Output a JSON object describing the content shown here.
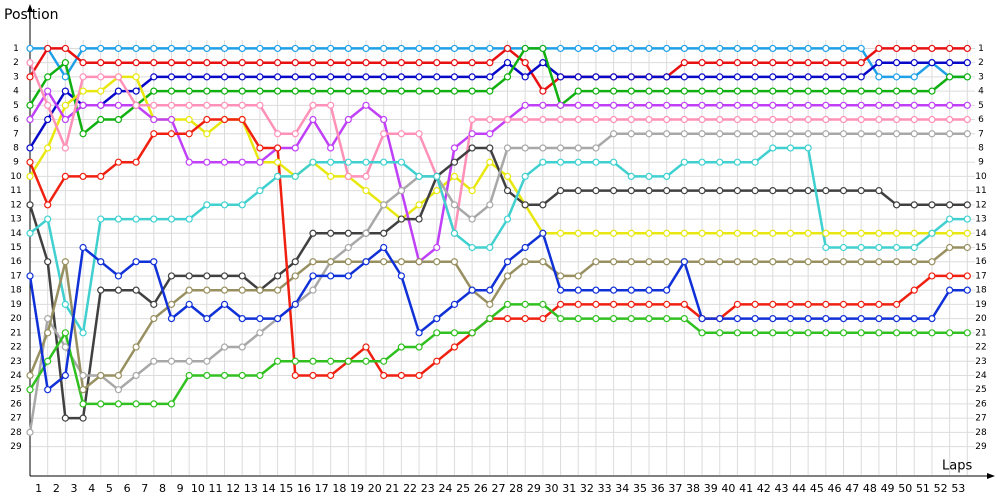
{
  "chart_data": {
    "type": "line",
    "ylabel": "Position",
    "xlabel": "Laps",
    "grid": true,
    "inverted_y": true,
    "x": [
      0,
      1,
      2,
      3,
      4,
      5,
      6,
      7,
      8,
      9,
      10,
      11,
      12,
      13,
      14,
      15,
      16,
      17,
      18,
      19,
      20,
      21,
      22,
      23,
      24,
      25,
      26,
      27,
      28,
      29,
      30,
      31,
      32,
      33,
      34,
      35,
      36,
      37,
      38,
      39,
      40,
      41,
      42,
      43,
      44,
      45,
      46,
      47,
      48,
      49,
      50,
      51,
      52,
      53
    ],
    "xlim": [
      0,
      54
    ],
    "xticks": [
      1,
      2,
      3,
      4,
      5,
      6,
      7,
      8,
      9,
      10,
      11,
      12,
      13,
      14,
      15,
      16,
      17,
      18,
      19,
      20,
      21,
      22,
      23,
      24,
      25,
      26,
      27,
      28,
      29,
      30,
      31,
      32,
      33,
      34,
      35,
      36,
      37,
      38,
      39,
      40,
      41,
      42,
      43,
      44,
      45,
      46,
      47,
      48,
      49,
      50,
      51,
      52,
      53
    ],
    "ylim": [
      31,
      -1
    ],
    "yticks": [
      1,
      2,
      3,
      4,
      5,
      6,
      7,
      8,
      9,
      10,
      11,
      12,
      13,
      14,
      15,
      16,
      17,
      18,
      19,
      20,
      21,
      22,
      23,
      24,
      25,
      26,
      27,
      28,
      29
    ],
    "series": [
      {
        "color": "#1fa0e8",
        "values": [
          1,
          1,
          3,
          1,
          1,
          1,
          1,
          1,
          1,
          1,
          1,
          1,
          1,
          1,
          1,
          1,
          1,
          1,
          1,
          1,
          1,
          1,
          1,
          1,
          1,
          1,
          1,
          1,
          1,
          1,
          1,
          1,
          1,
          1,
          1,
          1,
          1,
          1,
          1,
          1,
          1,
          1,
          1,
          1,
          1,
          1,
          1,
          1,
          3,
          3,
          3,
          2,
          3,
          3
        ]
      },
      {
        "color": "#e81010",
        "values": [
          3,
          1,
          1,
          2,
          2,
          2,
          2,
          2,
          2,
          2,
          2,
          2,
          2,
          2,
          2,
          2,
          2,
          2,
          2,
          2,
          2,
          2,
          2,
          2,
          2,
          2,
          2,
          1,
          2,
          4,
          3,
          3,
          3,
          3,
          3,
          3,
          3,
          2,
          2,
          2,
          2,
          2,
          2,
          2,
          2,
          2,
          2,
          2,
          1,
          1,
          1,
          1,
          1,
          1
        ]
      },
      {
        "color": "#0808c8",
        "values": [
          8,
          6,
          4,
          5,
          5,
          4,
          4,
          3,
          3,
          3,
          3,
          3,
          3,
          3,
          3,
          3,
          3,
          3,
          3,
          3,
          3,
          3,
          3,
          3,
          3,
          3,
          3,
          2,
          3,
          2,
          3,
          3,
          3,
          3,
          3,
          3,
          3,
          3,
          3,
          3,
          3,
          3,
          3,
          3,
          3,
          3,
          3,
          3,
          2,
          2,
          2,
          2,
          2,
          2
        ]
      },
      {
        "color": "#10b010",
        "values": [
          5,
          3,
          2,
          7,
          6,
          6,
          5,
          4,
          4,
          4,
          4,
          4,
          4,
          4,
          4,
          4,
          4,
          4,
          4,
          4,
          4,
          4,
          4,
          4,
          4,
          4,
          4,
          3,
          1,
          1,
          5,
          4,
          4,
          4,
          4,
          4,
          4,
          4,
          4,
          4,
          4,
          4,
          4,
          4,
          4,
          4,
          4,
          4,
          4,
          4,
          4,
          4,
          3,
          3
        ]
      },
      {
        "color": "#e8e810",
        "values": [
          10,
          8,
          5,
          4,
          4,
          3,
          3,
          6,
          6,
          6,
          7,
          6,
          6,
          9,
          9,
          10,
          9,
          10,
          10,
          11,
          12,
          13,
          12,
          11,
          10,
          11,
          9,
          10,
          12,
          14,
          14,
          14,
          14,
          14,
          14,
          14,
          14,
          14,
          14,
          14,
          14,
          14,
          14,
          14,
          14,
          14,
          14,
          14,
          14,
          14,
          14,
          14,
          14,
          14
        ]
      },
      {
        "color": "#c040f8",
        "values": [
          6,
          4,
          6,
          5,
          5,
          5,
          5,
          6,
          6,
          9,
          9,
          9,
          9,
          9,
          8,
          8,
          6,
          8,
          6,
          5,
          6,
          11,
          16,
          15,
          8,
          7,
          7,
          6,
          5,
          5,
          5,
          5,
          5,
          5,
          5,
          5,
          5,
          5,
          5,
          5,
          5,
          5,
          5,
          5,
          5,
          5,
          5,
          5,
          5,
          5,
          5,
          5,
          5,
          5
        ]
      },
      {
        "color": "#ff90b8",
        "values": [
          2,
          5,
          8,
          3,
          3,
          3,
          5,
          5,
          5,
          5,
          5,
          5,
          5,
          5,
          7,
          7,
          5,
          5,
          10,
          10,
          7,
          7,
          7,
          10,
          14,
          6,
          6,
          6,
          6,
          6,
          6,
          6,
          6,
          6,
          6,
          6,
          6,
          6,
          6,
          6,
          6,
          6,
          6,
          6,
          6,
          6,
          6,
          6,
          6,
          6,
          6,
          6,
          6,
          6
        ]
      },
      {
        "color": "#404040",
        "values": [
          12,
          16,
          27,
          27,
          18,
          18,
          18,
          19,
          17,
          17,
          17,
          17,
          17,
          18,
          17,
          16,
          14,
          14,
          14,
          14,
          14,
          13,
          13,
          10,
          9,
          8,
          8,
          11,
          12,
          12,
          11,
          11,
          11,
          11,
          11,
          11,
          11,
          11,
          11,
          11,
          11,
          11,
          11,
          11,
          11,
          11,
          11,
          11,
          11,
          12,
          12,
          12,
          12,
          12
        ]
      },
      {
        "color": "#a8a8a8",
        "values": [
          28,
          20,
          22,
          24,
          24,
          25,
          24,
          23,
          23,
          23,
          23,
          22,
          22,
          21,
          20,
          19,
          18,
          16,
          15,
          14,
          12,
          11,
          10,
          10,
          12,
          13,
          12,
          8,
          8,
          8,
          8,
          8,
          8,
          7,
          7,
          7,
          7,
          7,
          7,
          7,
          7,
          7,
          7,
          7,
          7,
          7,
          7,
          7,
          7,
          7,
          7,
          7,
          7,
          7
        ]
      },
      {
        "color": "#40d0d0",
        "values": [
          14,
          13,
          19,
          21,
          13,
          13,
          13,
          13,
          13,
          13,
          12,
          12,
          12,
          11,
          10,
          10,
          9,
          9,
          9,
          9,
          9,
          9,
          10,
          10,
          14,
          15,
          15,
          13,
          10,
          9,
          9,
          9,
          9,
          9,
          10,
          10,
          10,
          9,
          9,
          9,
          9,
          9,
          8,
          8,
          8,
          15,
          15,
          15,
          15,
          15,
          15,
          14,
          13,
          13
        ]
      },
      {
        "color": "#989060",
        "values": [
          24,
          21,
          16,
          25,
          24,
          24,
          22,
          20,
          19,
          18,
          18,
          18,
          18,
          18,
          18,
          17,
          16,
          16,
          16,
          16,
          16,
          16,
          16,
          16,
          16,
          18,
          19,
          17,
          16,
          16,
          17,
          17,
          16,
          16,
          16,
          16,
          16,
          16,
          16,
          16,
          16,
          16,
          16,
          16,
          16,
          16,
          16,
          16,
          16,
          16,
          16,
          16,
          15,
          15
        ]
      },
      {
        "color": "#f02010",
        "values": [
          9,
          12,
          10,
          10,
          10,
          9,
          9,
          7,
          7,
          7,
          6,
          6,
          6,
          8,
          8,
          24,
          24,
          24,
          23,
          22,
          24,
          24,
          24,
          23,
          22,
          21,
          20,
          20,
          20,
          20,
          19,
          19,
          19,
          19,
          19,
          19,
          19,
          19,
          20,
          20,
          19,
          19,
          19,
          19,
          19,
          19,
          19,
          19,
          19,
          19,
          18,
          17,
          17,
          17
        ]
      },
      {
        "color": "#30c020",
        "values": [
          25,
          23,
          21,
          26,
          26,
          26,
          26,
          26,
          26,
          24,
          24,
          24,
          24,
          24,
          23,
          23,
          23,
          23,
          23,
          23,
          23,
          22,
          22,
          21,
          21,
          21,
          20,
          19,
          19,
          19,
          20,
          20,
          20,
          20,
          20,
          20,
          20,
          20,
          21,
          21,
          21,
          21,
          21,
          21,
          21,
          21,
          21,
          21,
          21,
          21,
          21,
          21,
          21,
          21
        ]
      },
      {
        "color": "#1030d8",
        "values": [
          17,
          25,
          24,
          15,
          16,
          17,
          16,
          16,
          20,
          19,
          20,
          19,
          20,
          20,
          20,
          19,
          17,
          17,
          17,
          16,
          15,
          17,
          21,
          20,
          19,
          18,
          18,
          16,
          15,
          14,
          18,
          18,
          18,
          18,
          18,
          18,
          18,
          16,
          20,
          20,
          20,
          20,
          20,
          20,
          20,
          20,
          20,
          20,
          20,
          20,
          20,
          20,
          18,
          18
        ]
      }
    ]
  }
}
